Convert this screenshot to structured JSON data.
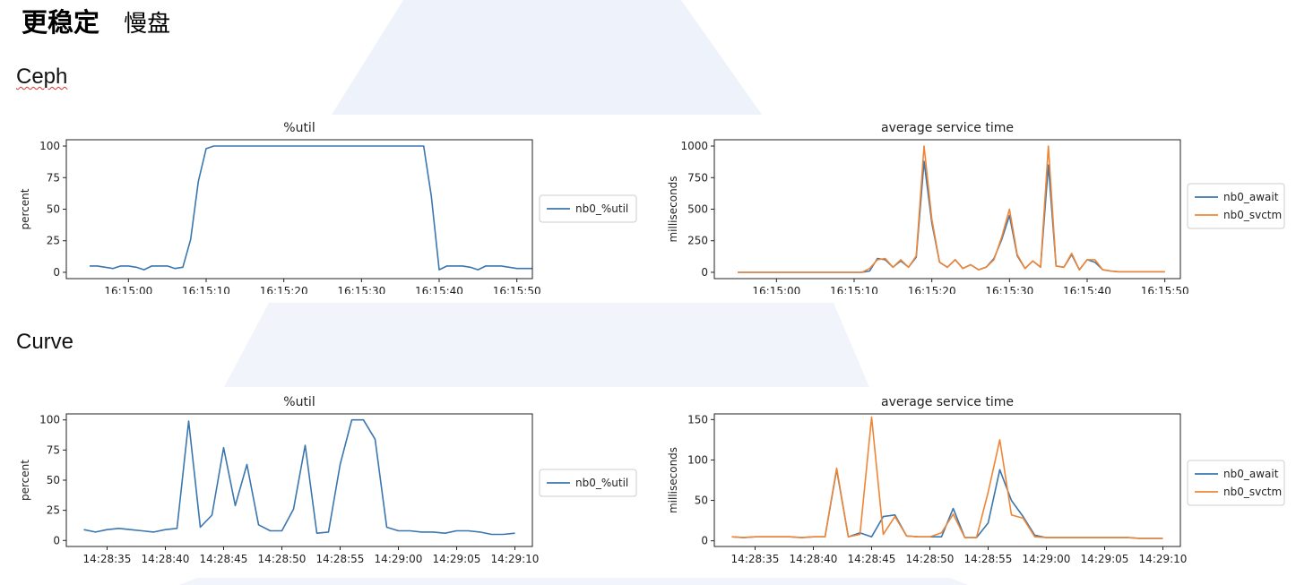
{
  "header": {
    "title_bold": "更稳定",
    "title_light": "慢盘"
  },
  "sections": {
    "ceph": "Ceph",
    "curve": "Curve"
  },
  "colors": {
    "blue": "#3b76af",
    "orange": "#ef8636",
    "decor": "#eef2fa"
  },
  "chart_data": [
    {
      "id": "ceph_util",
      "type": "line",
      "title": "%util",
      "ylabel": "percent",
      "xlabel": "",
      "x_tick_labels": [
        "16:15:00",
        "16:15:10",
        "16:15:20",
        "16:15:30",
        "16:15:40",
        "16:15:50"
      ],
      "x_tick_values": [
        5,
        15,
        25,
        35,
        45,
        55
      ],
      "xlim": [
        -3,
        57
      ],
      "ylim": [
        -5,
        105
      ],
      "yticks": [
        0,
        25,
        50,
        75,
        100
      ],
      "grid": false,
      "legend_position": "right",
      "x": [
        0,
        1,
        2,
        3,
        4,
        5,
        6,
        7,
        8,
        9,
        10,
        11,
        12,
        13,
        14,
        15,
        16,
        17,
        18,
        19,
        20,
        21,
        22,
        23,
        24,
        25,
        26,
        27,
        28,
        29,
        30,
        31,
        32,
        33,
        34,
        35,
        36,
        37,
        38,
        39,
        40,
        41,
        42,
        43,
        44,
        45,
        46,
        47,
        48,
        49,
        50,
        51,
        52,
        53,
        54,
        55,
        56,
        57
      ],
      "series": [
        {
          "name": "nb0_%util",
          "color": "#3b76af",
          "values": [
            5,
            5,
            4,
            3,
            5,
            5,
            4,
            2,
            5,
            5,
            5,
            3,
            4,
            26,
            72,
            98,
            100,
            100,
            100,
            100,
            100,
            100,
            100,
            100,
            100,
            100,
            100,
            100,
            100,
            100,
            100,
            100,
            100,
            100,
            100,
            100,
            100,
            100,
            100,
            100,
            100,
            100,
            100,
            100,
            60,
            2,
            5,
            5,
            5,
            4,
            2,
            5,
            5,
            5,
            4,
            3,
            3,
            3
          ]
        }
      ]
    },
    {
      "id": "ceph_svc",
      "type": "line",
      "title": "average service time",
      "ylabel": "milliseconds",
      "xlabel": "",
      "x_tick_labels": [
        "16:15:00",
        "16:15:10",
        "16:15:20",
        "16:15:30",
        "16:15:40",
        "16:15:50"
      ],
      "x_tick_values": [
        5,
        15,
        25,
        35,
        45,
        55
      ],
      "xlim": [
        -3,
        57
      ],
      "ylim": [
        -50,
        1050
      ],
      "yticks": [
        0,
        250,
        500,
        750,
        1000
      ],
      "grid": false,
      "legend_position": "right",
      "x": [
        0,
        1,
        2,
        3,
        4,
        5,
        6,
        7,
        8,
        9,
        10,
        11,
        12,
        13,
        14,
        15,
        16,
        17,
        18,
        19,
        20,
        21,
        22,
        23,
        24,
        25,
        26,
        27,
        28,
        29,
        30,
        31,
        32,
        33,
        34,
        35,
        36,
        37,
        38,
        39,
        40,
        41,
        42,
        43,
        44,
        45,
        46,
        47,
        48,
        49,
        50,
        51,
        52,
        53,
        54,
        55
      ],
      "series": [
        {
          "name": "nb0_await",
          "color": "#3b76af",
          "values": [
            0,
            0,
            0,
            0,
            0,
            0,
            0,
            0,
            0,
            0,
            0,
            0,
            0,
            0,
            0,
            0,
            0,
            10,
            110,
            100,
            40,
            90,
            40,
            120,
            880,
            390,
            80,
            40,
            100,
            30,
            60,
            20,
            40,
            110,
            260,
            450,
            130,
            30,
            90,
            40,
            850,
            50,
            40,
            140,
            20,
            100,
            80,
            20,
            10,
            5,
            5,
            5,
            5,
            5,
            5,
            5
          ]
        },
        {
          "name": "nb0_svctm",
          "color": "#ef8636",
          "values": [
            0,
            0,
            0,
            0,
            0,
            0,
            0,
            0,
            0,
            0,
            0,
            0,
            0,
            0,
            0,
            0,
            0,
            30,
            100,
            110,
            40,
            100,
            40,
            130,
            1000,
            420,
            80,
            40,
            100,
            30,
            60,
            20,
            40,
            100,
            280,
            500,
            140,
            30,
            90,
            40,
            1000,
            50,
            40,
            150,
            20,
            100,
            100,
            20,
            10,
            5,
            5,
            5,
            5,
            5,
            5,
            5
          ]
        }
      ]
    },
    {
      "id": "curve_util",
      "type": "line",
      "title": "%util",
      "ylabel": "percent",
      "xlabel": "",
      "x_tick_labels": [
        "14:28:35",
        "14:28:40",
        "14:28:45",
        "14:28:50",
        "14:28:55",
        "14:29:00",
        "14:29:05",
        "14:29:10"
      ],
      "x_tick_values": [
        2,
        7,
        12,
        17,
        22,
        27,
        32,
        37
      ],
      "xlim": [
        -1.5,
        38.5
      ],
      "ylim": [
        -5,
        105
      ],
      "yticks": [
        0,
        25,
        50,
        75,
        100
      ],
      "grid": false,
      "legend_position": "right",
      "x": [
        0,
        1,
        2,
        3,
        4,
        5,
        6,
        7,
        8,
        9,
        10,
        11,
        12,
        13,
        14,
        15,
        16,
        17,
        18,
        19,
        20,
        21,
        22,
        23,
        24,
        25,
        26,
        27,
        28,
        29,
        30,
        31,
        32,
        33,
        34,
        35,
        36,
        37
      ],
      "series": [
        {
          "name": "nb0_%util",
          "color": "#3b76af",
          "values": [
            9,
            7,
            9,
            10,
            9,
            8,
            7,
            9,
            10,
            99,
            11,
            21,
            77,
            29,
            63,
            13,
            8,
            8,
            26,
            79,
            6,
            7,
            63,
            100,
            100,
            84,
            11,
            8,
            8,
            7,
            7,
            6,
            8,
            8,
            7,
            5,
            5,
            6
          ]
        }
      ]
    },
    {
      "id": "curve_svc",
      "type": "line",
      "title": "average service time",
      "ylabel": "milliseconds",
      "xlabel": "",
      "x_tick_labels": [
        "14:28:35",
        "14:28:40",
        "14:28:45",
        "14:28:50",
        "14:28:55",
        "14:29:00",
        "14:29:05",
        "14:29:10"
      ],
      "x_tick_values": [
        2,
        7,
        12,
        17,
        22,
        27,
        32,
        37
      ],
      "xlim": [
        -1.5,
        38.5
      ],
      "ylim": [
        -7,
        157
      ],
      "yticks": [
        0,
        50,
        100,
        150
      ],
      "grid": false,
      "legend_position": "right",
      "x": [
        0,
        1,
        2,
        3,
        4,
        5,
        6,
        7,
        8,
        9,
        10,
        11,
        12,
        13,
        14,
        15,
        16,
        17,
        18,
        19,
        20,
        21,
        22,
        23,
        24,
        25,
        26,
        27,
        28,
        29,
        30,
        31,
        32,
        33,
        34,
        35,
        36,
        37
      ],
      "series": [
        {
          "name": "nb0_await",
          "color": "#3b76af",
          "values": [
            5,
            4,
            5,
            5,
            5,
            5,
            4,
            5,
            5,
            88,
            5,
            10,
            5,
            30,
            32,
            6,
            5,
            5,
            5,
            40,
            4,
            4,
            22,
            88,
            50,
            30,
            7,
            4,
            4,
            4,
            4,
            4,
            4,
            4,
            4,
            3,
            3,
            3
          ]
        },
        {
          "name": "nb0_svctm",
          "color": "#ef8636",
          "values": [
            5,
            4,
            5,
            5,
            5,
            5,
            4,
            5,
            5,
            90,
            5,
            8,
            153,
            8,
            30,
            6,
            5,
            5,
            10,
            33,
            4,
            4,
            60,
            125,
            32,
            28,
            5,
            4,
            4,
            4,
            4,
            4,
            4,
            4,
            4,
            3,
            3,
            3
          ]
        }
      ]
    }
  ]
}
